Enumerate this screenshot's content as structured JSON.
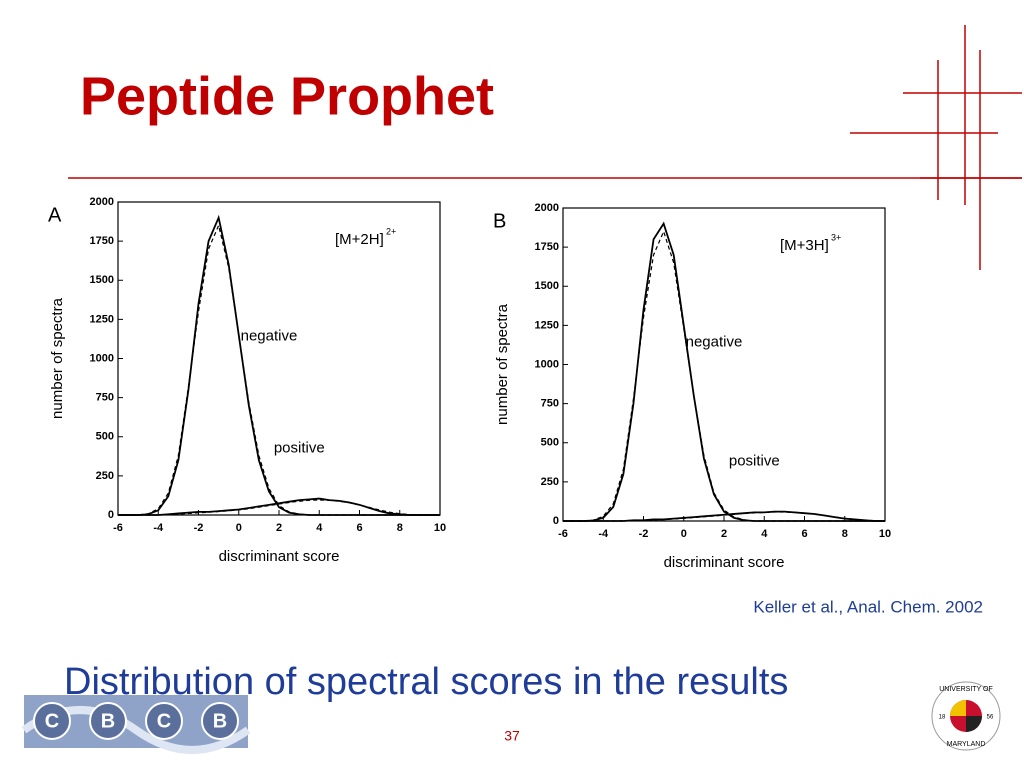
{
  "title": "Peptide Prophet",
  "citation": "Keller et al., Anal. Chem. 2002",
  "caption": "Distribution of spectral scores in the results",
  "page_number": "37",
  "logo_left": [
    "C",
    "B",
    "C",
    "B"
  ],
  "logo_right": {
    "top": "UNIVERSITY OF",
    "bottom": "MARYLAND",
    "left": "18",
    "right": "56"
  },
  "chart_data": [
    {
      "type": "line",
      "panel": "A",
      "label": "[M+2H]",
      "label_sup": "2+",
      "xlabel": "discriminant score",
      "ylabel": "number of spectra",
      "x": [
        -6,
        -5.5,
        -5,
        -4.5,
        -4,
        -3.5,
        -3,
        -2.5,
        -2,
        -1.5,
        -1,
        -0.5,
        0,
        0.5,
        1,
        1.5,
        2,
        2.5,
        3,
        3.5,
        4,
        4.5,
        5,
        5.5,
        6,
        6.5,
        7,
        7.5,
        8,
        8.5,
        9,
        9.5,
        10
      ],
      "series": [
        {
          "name": "negative",
          "color": "#000000",
          "values": [
            0,
            0,
            0,
            5,
            30,
            120,
            350,
            800,
            1350,
            1750,
            1900,
            1600,
            1150,
            700,
            350,
            150,
            50,
            15,
            5,
            0,
            0,
            0,
            0,
            0,
            0,
            0,
            0,
            0,
            0,
            0,
            0,
            0,
            0
          ]
        },
        {
          "color": "#000000",
          "dash": true,
          "values": [
            0,
            0,
            0,
            8,
            40,
            140,
            380,
            820,
            1300,
            1700,
            1850,
            1580,
            1150,
            720,
            380,
            170,
            60,
            20,
            5,
            0,
            0,
            0,
            0,
            0,
            0,
            0,
            0,
            0,
            0,
            0,
            0,
            0,
            0
          ]
        },
        {
          "name": "positive",
          "color": "#000000",
          "values": [
            0,
            0,
            0,
            0,
            0,
            5,
            10,
            15,
            20,
            20,
            25,
            30,
            35,
            45,
            55,
            65,
            75,
            85,
            95,
            100,
            105,
            95,
            90,
            80,
            65,
            45,
            25,
            10,
            5,
            0,
            0,
            0,
            0
          ]
        },
        {
          "color": "#000000",
          "dash": true,
          "values": [
            0,
            0,
            0,
            0,
            0,
            3,
            6,
            10,
            14,
            18,
            22,
            27,
            33,
            40,
            50,
            60,
            70,
            80,
            88,
            94,
            96,
            94,
            88,
            78,
            64,
            48,
            32,
            18,
            8,
            3,
            0,
            0,
            0
          ]
        }
      ],
      "xlim": [
        -6,
        10
      ],
      "xticks": [
        -6,
        -4,
        -2,
        0,
        2,
        4,
        6,
        8,
        10
      ],
      "ylim": [
        0,
        2000
      ],
      "yticks": [
        0,
        250,
        500,
        750,
        1000,
        1250,
        1500,
        1750,
        2000
      ]
    },
    {
      "type": "line",
      "panel": "B",
      "label": "[M+3H]",
      "label_sup": "3+",
      "xlabel": "discriminant score",
      "ylabel": "number of spectra",
      "x": [
        -6,
        -5.5,
        -5,
        -4.5,
        -4,
        -3.5,
        -3,
        -2.5,
        -2,
        -1.5,
        -1,
        -0.5,
        0,
        0.5,
        1,
        1.5,
        2,
        2.5,
        3,
        3.5,
        4,
        4.5,
        5,
        5.5,
        6,
        6.5,
        7,
        7.5,
        8,
        8.5,
        9,
        9.5,
        10
      ],
      "series": [
        {
          "name": "negative",
          "color": "#000000",
          "values": [
            0,
            0,
            0,
            3,
            20,
            90,
            300,
            750,
            1350,
            1800,
            1900,
            1700,
            1250,
            800,
            400,
            170,
            60,
            20,
            5,
            0,
            0,
            0,
            0,
            0,
            0,
            0,
            0,
            0,
            0,
            0,
            0,
            0,
            0
          ]
        },
        {
          "color": "#000000",
          "dash": true,
          "values": [
            0,
            0,
            0,
            5,
            30,
            110,
            330,
            780,
            1300,
            1700,
            1850,
            1650,
            1230,
            800,
            420,
            180,
            70,
            25,
            8,
            0,
            0,
            0,
            0,
            0,
            0,
            0,
            0,
            0,
            0,
            0,
            0,
            0,
            0
          ]
        },
        {
          "name": "positive",
          "color": "#000000",
          "values": [
            0,
            0,
            0,
            0,
            0,
            0,
            0,
            5,
            5,
            10,
            10,
            15,
            20,
            25,
            30,
            35,
            40,
            45,
            50,
            55,
            55,
            60,
            60,
            55,
            50,
            45,
            35,
            25,
            15,
            10,
            5,
            0,
            0
          ]
        },
        {
          "color": "#000000",
          "dash": true,
          "values": [
            0,
            0,
            0,
            0,
            0,
            0,
            2,
            4,
            6,
            8,
            10,
            13,
            17,
            22,
            27,
            32,
            38,
            43,
            48,
            52,
            55,
            57,
            57,
            55,
            50,
            43,
            35,
            26,
            17,
            10,
            5,
            2,
            0
          ]
        }
      ],
      "xlim": [
        -6,
        10
      ],
      "xticks": [
        -6,
        -4,
        -2,
        0,
        2,
        4,
        6,
        8,
        10
      ],
      "ylim": [
        0,
        2000
      ],
      "yticks": [
        0,
        250,
        500,
        750,
        1000,
        1250,
        1500,
        1750,
        2000
      ]
    }
  ]
}
